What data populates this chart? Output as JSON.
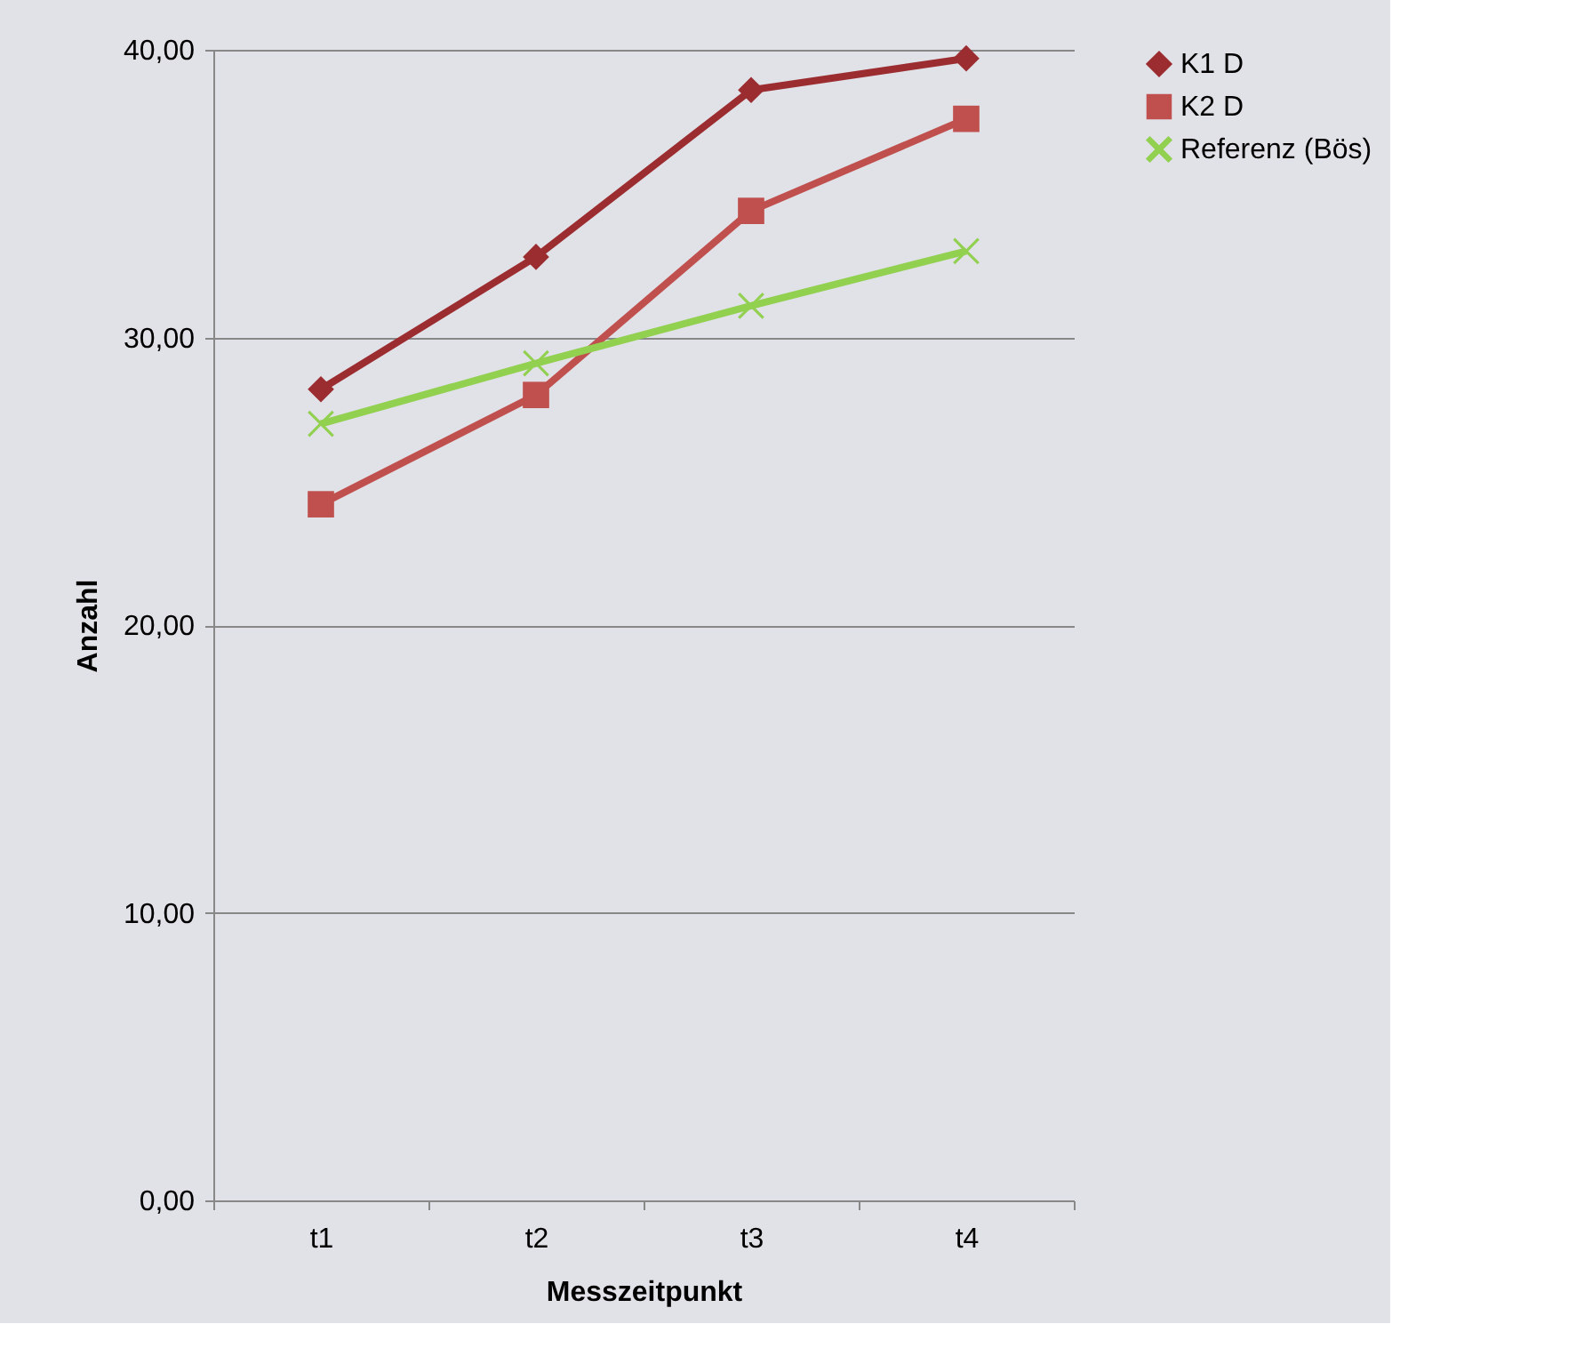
{
  "chart_data": {
    "type": "line",
    "xlabel": "Messzeitpunkt",
    "ylabel": "Anzahl",
    "categories": [
      "t1",
      "t2",
      "t3",
      "t4"
    ],
    "series": [
      {
        "name": "K1 D",
        "color": "#9b2d30",
        "marker": "diamond",
        "values": [
          28.2,
          32.8,
          38.6,
          39.7
        ]
      },
      {
        "name": "K2 D",
        "color": "#c0504d",
        "marker": "square",
        "values": [
          24.2,
          28.0,
          34.4,
          37.6
        ]
      },
      {
        "name": "Referenz (Bös)",
        "color": "#92d050",
        "marker": "cross",
        "values": [
          27.0,
          29.1,
          31.1,
          33.0
        ]
      }
    ],
    "ylim": [
      0,
      40
    ],
    "yticks": [
      {
        "value": 0,
        "label": "0,00"
      },
      {
        "value": 10,
        "label": "10,00"
      },
      {
        "value": 20,
        "label": "20,00"
      },
      {
        "value": 30,
        "label": "30,00"
      },
      {
        "value": 40,
        "label": "40,00"
      }
    ],
    "grid": "y",
    "legend": "right"
  }
}
